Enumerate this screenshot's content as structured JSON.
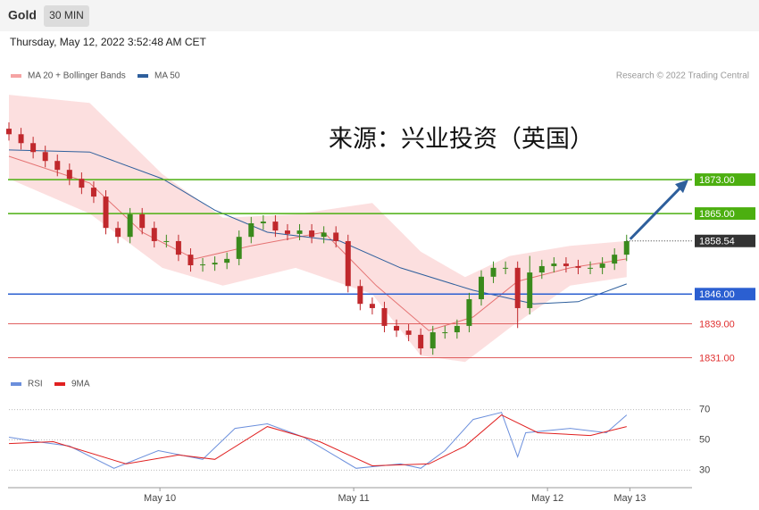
{
  "chart_data": {
    "type": "candlestick",
    "header": {
      "symbol": "Gold",
      "interval": "30 MIN",
      "date": "Thursday, May 12, 2022 3:52:48 AM CET",
      "copyright": "Research © 2022 Trading Central"
    },
    "annotation": "来源：兴业投资（英国）",
    "x": [
      0,
      3,
      6,
      9,
      12,
      15,
      18,
      21,
      24,
      27,
      30,
      33,
      36,
      39,
      42,
      45,
      48,
      51,
      54,
      57,
      60,
      63,
      66,
      69,
      72,
      75,
      78,
      81,
      84,
      87,
      90,
      93,
      96,
      99,
      102,
      105,
      108,
      111,
      114,
      117,
      120,
      123,
      126,
      129,
      132,
      135,
      138,
      141,
      144,
      147,
      150,
      153
    ],
    "open": [
      1885.0,
      1883.7,
      1881.6,
      1879.5,
      1877.4,
      1875.3,
      1873.2,
      1871.1,
      1869.0,
      1861.6,
      1859.5,
      1864.8,
      1861.6,
      1858.5,
      1858.5,
      1855.3,
      1852.8,
      1853.0,
      1853.4,
      1854.3,
      1859.5,
      1862.7,
      1863.1,
      1861.0,
      1860.2,
      1861.0,
      1859.5,
      1860.5,
      1858.5,
      1847.9,
      1843.7,
      1842.7,
      1838.5,
      1837.4,
      1836.4,
      1833.2,
      1837.0,
      1837.0,
      1838.5,
      1844.8,
      1850.1,
      1852.2,
      1852.2,
      1842.7,
      1851.1,
      1852.6,
      1853.2,
      1852.6,
      1852.2,
      1852.2,
      1853.2,
      1855.3
    ],
    "high": [
      1886.5,
      1885.2,
      1883.1,
      1881.0,
      1878.9,
      1876.8,
      1874.7,
      1872.6,
      1870.5,
      1863.1,
      1866.3,
      1866.3,
      1863.1,
      1860.0,
      1860.0,
      1856.8,
      1854.5,
      1854.9,
      1855.8,
      1861.0,
      1864.2,
      1864.6,
      1864.6,
      1862.5,
      1862.5,
      1862.5,
      1862.0,
      1862.0,
      1860.0,
      1849.4,
      1845.2,
      1844.2,
      1840.0,
      1838.9,
      1837.9,
      1838.5,
      1838.5,
      1840.0,
      1846.3,
      1851.6,
      1853.7,
      1853.7,
      1853.7,
      1855.0,
      1854.1,
      1854.7,
      1854.7,
      1854.1,
      1853.7,
      1854.7,
      1856.8,
      1860.0
    ],
    "low": [
      1882.2,
      1880.1,
      1878.0,
      1875.9,
      1873.8,
      1871.7,
      1869.6,
      1867.5,
      1860.1,
      1858.0,
      1858.0,
      1860.1,
      1857.0,
      1857.0,
      1853.8,
      1851.3,
      1851.3,
      1851.5,
      1851.9,
      1852.8,
      1858.0,
      1861.2,
      1859.5,
      1858.7,
      1858.7,
      1858.0,
      1858.0,
      1857.0,
      1846.4,
      1842.2,
      1841.2,
      1837.0,
      1835.9,
      1834.9,
      1831.7,
      1831.7,
      1835.5,
      1835.5,
      1837.0,
      1843.3,
      1848.6,
      1850.7,
      1838.0,
      1841.2,
      1849.6,
      1851.1,
      1851.1,
      1850.7,
      1850.7,
      1850.7,
      1851.7,
      1853.8
    ],
    "close": [
      1883.7,
      1881.6,
      1879.5,
      1877.4,
      1875.3,
      1873.2,
      1871.1,
      1869.0,
      1861.6,
      1859.5,
      1864.8,
      1861.6,
      1858.5,
      1858.5,
      1855.3,
      1852.8,
      1853.0,
      1853.4,
      1854.3,
      1859.5,
      1862.7,
      1863.1,
      1861.0,
      1860.2,
      1861.0,
      1859.5,
      1860.5,
      1858.5,
      1847.9,
      1843.7,
      1842.7,
      1838.5,
      1837.4,
      1836.4,
      1833.2,
      1837.0,
      1837.0,
      1838.5,
      1844.8,
      1850.1,
      1852.2,
      1852.2,
      1842.7,
      1851.1,
      1852.6,
      1853.2,
      1852.6,
      1852.2,
      1852.2,
      1853.2,
      1855.3,
      1858.5
    ],
    "up_color": "#3a8a1c",
    "down_color": "#c0282c",
    "last_price": {
      "value": 1858.54,
      "label": "1858.54"
    },
    "bands": {
      "name": "MA 20 + Bollinger Bands",
      "color": "#f5a3a3",
      "x": [
        0,
        20,
        38,
        53,
        71,
        90,
        102,
        113,
        124,
        139,
        153
      ],
      "upper": [
        1893,
        1891.1,
        1874.3,
        1864,
        1864.8,
        1867.5,
        1856,
        1850,
        1855,
        1857.4,
        1858.5
      ],
      "lower": [
        1873.2,
        1865,
        1852.2,
        1848,
        1852.2,
        1846,
        1831.5,
        1830,
        1838,
        1848,
        1850
      ],
      "ma_x": [
        0,
        20,
        33,
        46,
        60,
        78,
        91,
        104,
        115,
        126,
        139,
        153
      ],
      "ma": [
        1878.5,
        1872.2,
        1860.6,
        1854.3,
        1857.4,
        1860.6,
        1848,
        1837.4,
        1840.6,
        1849,
        1852.2,
        1854.3
      ]
    },
    "ma50": {
      "name": "MA 50",
      "color": "#2e5f9c",
      "x": [
        0,
        20,
        38,
        51,
        64,
        82,
        97,
        115,
        130,
        141,
        153
      ],
      "values": [
        1880,
        1879.5,
        1873.2,
        1865.8,
        1860.6,
        1858.5,
        1852.2,
        1846.9,
        1843.7,
        1844.2,
        1848.4
      ]
    },
    "levels": [
      {
        "value": 1873,
        "label": "1873.00",
        "color": "#4caf10"
      },
      {
        "value": 1865,
        "label": "1865.00",
        "color": "#4caf10"
      },
      {
        "value": 1846,
        "label": "1846.00",
        "color": "#2b5fd1"
      },
      {
        "value": 1839,
        "label": "1839.00",
        "color": "#e06060"
      },
      {
        "value": 1831,
        "label": "1831.00",
        "color": "#e06060"
      }
    ],
    "xlim": [
      0,
      169.2
    ],
    "ylim": [
      1829,
      1896.4
    ],
    "xticks": [
      {
        "value": 37.4,
        "label": "May 10"
      },
      {
        "value": 85.4,
        "label": "May 11"
      },
      {
        "value": 133.4,
        "label": "May 12"
      },
      {
        "value": 153.8,
        "label": "May 13"
      }
    ],
    "rsi": {
      "ylim": [
        19,
        81
      ],
      "yticks": [
        70,
        50,
        30
      ],
      "series": [
        {
          "name": "RSI",
          "color": "#6b8fdc",
          "x": [
            0,
            7,
            15,
            26,
            37,
            48,
            56,
            64,
            73,
            86,
            97,
            102,
            108,
            115,
            122,
            126,
            128,
            139,
            148,
            153
          ],
          "values": [
            51.8,
            48.8,
            45.9,
            31.2,
            42.9,
            37.1,
            57.6,
            60.6,
            51.8,
            31.2,
            34.1,
            31.2,
            42.9,
            63.5,
            68.2,
            38.8,
            54.7,
            57.6,
            54.7,
            66.5
          ]
        },
        {
          "name": "9MA",
          "color": "#e02020",
          "x": [
            0,
            11,
            29,
            42,
            51,
            64,
            77,
            90,
            104,
            113,
            122,
            131,
            144,
            153
          ],
          "values": [
            47.6,
            48.8,
            34.1,
            40,
            37.1,
            58.8,
            48.8,
            32.9,
            34.1,
            45.9,
            66.5,
            54.7,
            52.9,
            58.8
          ]
        }
      ]
    }
  }
}
